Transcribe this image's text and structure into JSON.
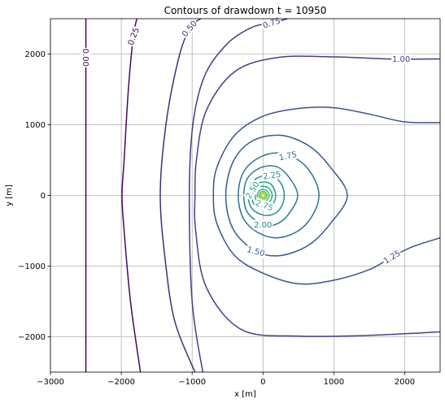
{
  "chart_data": {
    "type": "contour",
    "title": "Contours of drawdown  t = 10950",
    "xlabel": "x [m]",
    "ylabel": "y [m]",
    "xlim": [
      -3000,
      2500
    ],
    "ylim": [
      -2500,
      2500
    ],
    "grid": true,
    "xticks": [
      {
        "value": -3000,
        "label": "−3000"
      },
      {
        "value": -2000,
        "label": "−2000"
      },
      {
        "value": -1000,
        "label": "−1000"
      },
      {
        "value": 0,
        "label": "0"
      },
      {
        "value": 1000,
        "label": "1000"
      },
      {
        "value": 2000,
        "label": "2000"
      }
    ],
    "yticks": [
      {
        "value": -2000,
        "label": "−2000"
      },
      {
        "value": -1000,
        "label": "−1000"
      },
      {
        "value": 0,
        "label": "0"
      },
      {
        "value": 1000,
        "label": "1000"
      },
      {
        "value": 2000,
        "label": "2000"
      }
    ],
    "well": {
      "x": 0,
      "y": 0
    },
    "levels": [
      {
        "level": 0.0,
        "label": "0.00",
        "color": "#440154",
        "label_pos": {
          "x": -2500,
          "y": 1950,
          "angle": 90
        },
        "points": [
          [
            -2500,
            -2500
          ],
          [
            -2500,
            1780
          ],
          [
            -2500,
            2100
          ],
          [
            -2500,
            2500
          ]
        ]
      },
      {
        "level": 0.25,
        "label": "0.25",
        "color": "#46085c",
        "label_pos": {
          "x": -1830,
          "y": 2250,
          "angle": -70
        },
        "points": [
          [
            -1730,
            -2500
          ],
          [
            -1870,
            -1500
          ],
          [
            -1960,
            -500
          ],
          [
            -1990,
            0
          ],
          [
            -1960,
            500
          ],
          [
            -1900,
            1500
          ],
          [
            -1830,
            2250
          ],
          [
            -1780,
            2500
          ]
        ]
      },
      {
        "level": 0.5,
        "label": "0.50",
        "color": "#472d7b",
        "label_pos": {
          "x": -1040,
          "y": 2360,
          "angle": -50
        },
        "points": [
          [
            -960,
            -2500
          ],
          [
            -1240,
            -1800
          ],
          [
            -1370,
            -1000
          ],
          [
            -1450,
            0
          ],
          [
            -1370,
            1000
          ],
          [
            -1200,
            1900
          ],
          [
            -1040,
            2360
          ],
          [
            -880,
            2500
          ]
        ]
      },
      {
        "level": 0.75,
        "label": "0.75",
        "color": "#433e85",
        "label_pos": {
          "x": 120,
          "y": 2440,
          "angle": -18
        },
        "points": [
          [
            -850,
            -2500
          ],
          [
            -1000,
            -1500
          ],
          [
            -1040,
            0
          ],
          [
            -990,
            1000
          ],
          [
            -820,
            1700
          ],
          [
            -500,
            2150
          ],
          [
            -150,
            2380
          ],
          [
            120,
            2440
          ],
          [
            350,
            2500
          ]
        ]
      },
      {
        "level": 1.0,
        "label": "1.00",
        "color": "#404387",
        "label_pos": {
          "x": 1950,
          "y": 1930,
          "angle": 0
        },
        "points": [
          [
            2500,
            -1930
          ],
          [
            1500,
            -1980
          ],
          [
            500,
            -1990
          ],
          [
            -300,
            -1900
          ],
          [
            -800,
            -1300
          ],
          [
            -950,
            -500
          ],
          [
            -960,
            0
          ],
          [
            -940,
            500
          ],
          [
            -800,
            1200
          ],
          [
            -400,
            1750
          ],
          [
            200,
            1950
          ],
          [
            1000,
            1960
          ],
          [
            1800,
            1930
          ],
          [
            2500,
            1930
          ]
        ]
      },
      {
        "level": 1.25,
        "label": "1.25",
        "color": "#3b528b",
        "label_pos": {
          "x": 1820,
          "y": -870,
          "angle": -32
        },
        "points": [
          [
            2500,
            1030
          ],
          [
            2000,
            1040
          ],
          [
            1500,
            1150
          ],
          [
            1000,
            1240
          ],
          [
            500,
            1230
          ],
          [
            0,
            1120
          ],
          [
            -400,
            850
          ],
          [
            -650,
            400
          ],
          [
            -700,
            0
          ],
          [
            -650,
            -400
          ],
          [
            -400,
            -850
          ],
          [
            0,
            -1100
          ],
          [
            500,
            -1250
          ],
          [
            1000,
            -1200
          ],
          [
            1500,
            -1050
          ],
          [
            1820,
            -870
          ],
          [
            2100,
            -730
          ],
          [
            2500,
            -600
          ]
        ]
      },
      {
        "level": 1.5,
        "label": "1.50",
        "color": "#365c8d",
        "label_pos": {
          "x": -100,
          "y": -790,
          "angle": 15
        },
        "points": [
          [
            -525,
            0
          ],
          [
            -420,
            480
          ],
          [
            -150,
            770
          ],
          [
            250,
            850
          ],
          [
            650,
            700
          ],
          [
            950,
            400
          ],
          [
            1190,
            0
          ],
          [
            950,
            -400
          ],
          [
            650,
            -700
          ],
          [
            250,
            -850
          ],
          [
            -100,
            -790
          ],
          [
            -420,
            -480
          ]
        ]
      },
      {
        "level": 1.75,
        "label": "1.75",
        "color": "#2c728e",
        "label_pos": {
          "x": 350,
          "y": 560,
          "angle": -12
        },
        "points": [
          [
            -350,
            0
          ],
          [
            -280,
            320
          ],
          [
            -80,
            520
          ],
          [
            200,
            600
          ],
          [
            500,
            500
          ],
          [
            700,
            280
          ],
          [
            790,
            0
          ],
          [
            700,
            -280
          ],
          [
            500,
            -500
          ],
          [
            200,
            -600
          ],
          [
            -80,
            -520
          ],
          [
            -280,
            -320
          ]
        ]
      },
      {
        "level": 2.0,
        "label": "2.00",
        "color": "#287d8e",
        "label_pos": {
          "x": 0,
          "y": -415,
          "angle": 0
        },
        "points": [
          [
            -270,
            0
          ],
          [
            -220,
            240
          ],
          [
            -40,
            390
          ],
          [
            180,
            410
          ],
          [
            350,
            280
          ],
          [
            490,
            0
          ],
          [
            350,
            -280
          ],
          [
            180,
            -410
          ],
          [
            0,
            -415
          ],
          [
            -220,
            -240
          ]
        ]
      },
      {
        "level": 2.25,
        "label": "2.25",
        "color": "#21918c",
        "label_pos": {
          "x": 125,
          "y": 285,
          "angle": -8
        },
        "points": [
          [
            -210,
            0
          ],
          [
            -160,
            180
          ],
          [
            -10,
            275
          ],
          [
            150,
            265
          ],
          [
            260,
            160
          ],
          [
            300,
            0
          ],
          [
            260,
            -160
          ],
          [
            150,
            -265
          ],
          [
            -10,
            -275
          ],
          [
            -160,
            -180
          ]
        ]
      },
      {
        "level": 2.5,
        "label": "2.50",
        "color": "#1fa088",
        "label_pos": {
          "x": -150,
          "y": 75,
          "angle": -58
        },
        "points": [
          [
            -160,
            0
          ],
          [
            -120,
            135
          ],
          [
            0,
            190
          ],
          [
            120,
            150
          ],
          [
            180,
            0
          ],
          [
            120,
            -150
          ],
          [
            0,
            -190
          ],
          [
            -120,
            -135
          ]
        ]
      },
      {
        "level": 2.75,
        "label": "2.75",
        "color": "#28ae80",
        "label_pos": {
          "x": 20,
          "y": -140,
          "angle": 20
        },
        "points": [
          [
            -110,
            0
          ],
          [
            -80,
            100
          ],
          [
            0,
            130
          ],
          [
            90,
            95
          ],
          [
            130,
            0
          ],
          [
            90,
            -95
          ],
          [
            0,
            -130
          ],
          [
            -80,
            -100
          ]
        ]
      },
      {
        "level": 3.0,
        "color": "#3fbc73",
        "points": [
          [
            -80,
            0
          ],
          [
            -55,
            65
          ],
          [
            0,
            85
          ],
          [
            60,
            60
          ],
          [
            85,
            0
          ],
          [
            60,
            -60
          ],
          [
            0,
            -85
          ],
          [
            -55,
            -65
          ]
        ]
      },
      {
        "level": 3.25,
        "color": "#5ec962",
        "points": [
          [
            -55,
            0
          ],
          [
            -38,
            42
          ],
          [
            0,
            58
          ],
          [
            40,
            40
          ],
          [
            58,
            0
          ],
          [
            40,
            -40
          ],
          [
            0,
            -58
          ],
          [
            -38,
            -42
          ]
        ]
      },
      {
        "level": 3.5,
        "color": "#84d44b",
        "points": [
          [
            -35,
            0
          ],
          [
            -24,
            26
          ],
          [
            0,
            36
          ],
          [
            26,
            25
          ],
          [
            36,
            0
          ],
          [
            26,
            -25
          ],
          [
            0,
            -36
          ],
          [
            -24,
            -26
          ]
        ]
      },
      {
        "level": 3.75,
        "color": "#addc30",
        "points": [
          [
            -20,
            0
          ],
          [
            -14,
            15
          ],
          [
            0,
            21
          ],
          [
            15,
            14
          ],
          [
            21,
            0
          ],
          [
            15,
            -14
          ],
          [
            0,
            -21
          ],
          [
            -14,
            -15
          ]
        ]
      },
      {
        "level": 4.0,
        "color": "#d8e219",
        "points": [
          [
            -10,
            0
          ],
          [
            -7,
            7
          ],
          [
            0,
            10
          ],
          [
            7,
            7
          ],
          [
            10,
            0
          ],
          [
            7,
            -7
          ],
          [
            0,
            -10
          ],
          [
            -7,
            -7
          ]
        ]
      }
    ]
  }
}
